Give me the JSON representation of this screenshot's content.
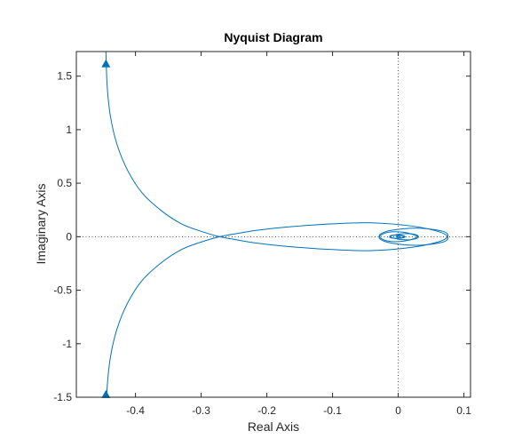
{
  "colors": {
    "curve": "#0072BD",
    "axis": "#262626",
    "zero_lines": "#262626",
    "background": "#ffffff"
  },
  "chart_data": {
    "type": "line",
    "title": "Nyquist Diagram",
    "xlabel": "Real Axis",
    "ylabel": "Imaginary Axis",
    "xlim": [
      -0.49,
      0.11
    ],
    "ylim": [
      -1.5,
      1.73
    ],
    "xticks": [
      -0.4,
      -0.3,
      -0.2,
      -0.1,
      0,
      0.1
    ],
    "xtick_labels": [
      "-0.4",
      "-0.3",
      "-0.2",
      "-0.1",
      "0",
      "0.1"
    ],
    "yticks": [
      -1.5,
      -1,
      -0.5,
      0,
      0.5,
      1,
      1.5
    ],
    "ytick_labels": [
      "-1.5",
      "-1",
      "-0.5",
      "0",
      "0.5",
      "1",
      "1.5"
    ],
    "grid": false,
    "zero_lines": "dotted",
    "series": [
      {
        "x": [
          -0.445,
          -0.443,
          -0.438,
          -0.428,
          -0.412,
          -0.39,
          -0.36,
          -0.33,
          -0.3,
          -0.272,
          -0.245,
          -0.215,
          -0.17,
          -0.1,
          -0.04,
          0.02,
          0.06,
          0.075,
          0.068,
          0.03,
          -0.01,
          -0.028,
          -0.025,
          -0.01,
          0.01,
          0.025,
          0.03,
          0.018,
          0.004,
          -0.008,
          -0.013,
          -0.008,
          0.003,
          0.01,
          0.008,
          0.002,
          -0.003,
          -0.002,
          0.0,
          0.0
        ],
        "y": [
          1.73,
          1.4,
          1.12,
          0.86,
          0.62,
          0.41,
          0.24,
          0.12,
          0.05,
          0.0,
          -0.03,
          -0.06,
          -0.09,
          -0.12,
          -0.13,
          -0.1,
          -0.05,
          0.0,
          0.05,
          0.08,
          0.06,
          0.02,
          -0.02,
          -0.045,
          -0.04,
          -0.015,
          0.01,
          0.028,
          0.026,
          0.012,
          -0.003,
          -0.014,
          -0.014,
          -0.004,
          0.006,
          0.008,
          0.003,
          -0.002,
          -0.001,
          0.0
        ]
      },
      {
        "x": [
          -0.445,
          -0.443,
          -0.438,
          -0.428,
          -0.412,
          -0.39,
          -0.36,
          -0.33,
          -0.3,
          -0.272,
          -0.245,
          -0.215,
          -0.17,
          -0.1,
          -0.04,
          0.02,
          0.06,
          0.075,
          0.068,
          0.03,
          -0.01,
          -0.028,
          -0.025,
          -0.01,
          0.01,
          0.025,
          0.03,
          0.018,
          0.004,
          -0.008,
          -0.013,
          -0.008,
          0.003,
          0.01,
          0.008,
          0.002,
          -0.003,
          -0.002,
          0.0,
          0.0
        ],
        "y": [
          -1.73,
          -1.4,
          -1.12,
          -0.86,
          -0.62,
          -0.41,
          -0.24,
          -0.12,
          -0.05,
          0.0,
          0.03,
          0.06,
          0.09,
          0.12,
          0.13,
          0.1,
          0.05,
          0.0,
          -0.05,
          -0.08,
          -0.06,
          -0.02,
          0.02,
          0.045,
          0.04,
          0.015,
          -0.01,
          -0.028,
          -0.026,
          -0.012,
          0.003,
          0.014,
          0.014,
          0.004,
          -0.006,
          -0.008,
          -0.003,
          0.002,
          0.001,
          0.0
        ]
      }
    ],
    "direction_arrows": [
      {
        "x": -0.445,
        "y": 1.62,
        "direction": "up"
      },
      {
        "x": -0.445,
        "y": -1.47,
        "direction": "up"
      }
    ]
  }
}
